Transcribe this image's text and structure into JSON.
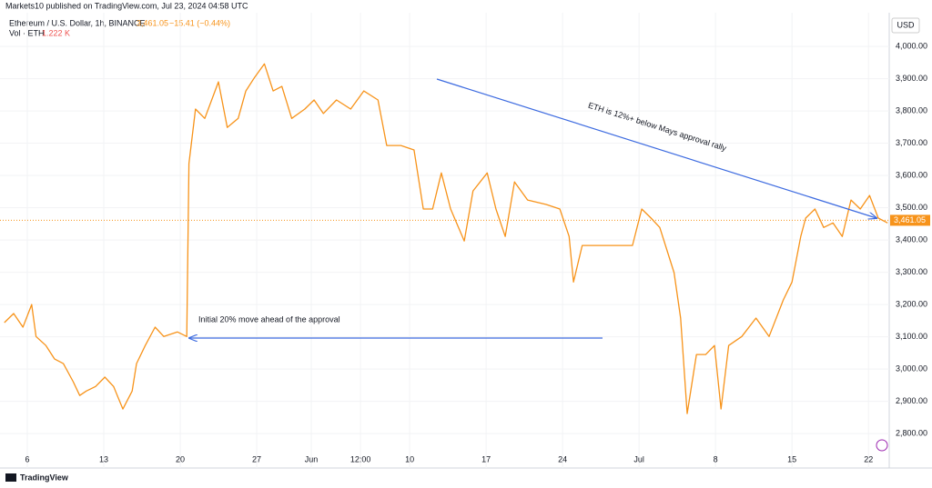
{
  "chart_data": {
    "type": "line",
    "publisher": "Markets10 published on TradingView.com, Jul 23, 2024 04:58 UTC",
    "symbol": "Ethereum / U.S. Dollar, 1h, BINANCE",
    "last_price": {
      "value": 3461.05,
      "label": "3,461.05"
    },
    "last_change": "−15.41 (−0.44%)",
    "volume_label": "Vol · ETH",
    "volume_value": "1.222 K",
    "currency": "USD",
    "brand": "TradingView",
    "annotations": [
      "ETH is 12%+ below Mays approval rally",
      "Initial 20% move ahead of the approval"
    ],
    "x": [
      3.9,
      4.75,
      5.6,
      6.4,
      6.8,
      7.7,
      8.5,
      9.3,
      10.2,
      10.8,
      11.4,
      12.25,
      13.1,
      13.9,
      14.75,
      15.6,
      16.0,
      16.8,
      17.7,
      18.5,
      19.75,
      20.6,
      20.8,
      21.4,
      22.25,
      23.5,
      24.3,
      25.3,
      26.0,
      26.8,
      27.7,
      28.5,
      29.3,
      30.2,
      31.4,
      32.25,
      33.1,
      34.3,
      35.6,
      36.8,
      38.1,
      38.9,
      40.2,
      41.4,
      42.25,
      43.1,
      43.9,
      44.75,
      46.0,
      46.8,
      48.1,
      48.9,
      49.75,
      50.6,
      51.8,
      53.5,
      54.75,
      55.6,
      56.0,
      56.8,
      58.5,
      60.2,
      61.4,
      62.25,
      63.1,
      63.9,
      65.2,
      65.8,
      66.4,
      67.25,
      68.1,
      68.9,
      69.5,
      70.2,
      71.4,
      72.7,
      73.9,
      75.2,
      76.0,
      76.8,
      77.25,
      78.1,
      78.9,
      79.75,
      80.6,
      81.4,
      82.25,
      83.1,
      83.9,
      84.75
    ],
    "series": [
      {
        "name": "ETH",
        "color": "#f7931a",
        "values": [
          3144,
          3172,
          3130,
          3200,
          3101,
          3073,
          3031,
          3017,
          2961,
          2918,
          2932,
          2946,
          2975,
          2946,
          2876,
          2932,
          3017,
          3073,
          3130,
          3101,
          3115,
          3101,
          3637,
          3806,
          3777,
          3890,
          3749,
          3777,
          3862,
          3904,
          3946,
          3862,
          3876,
          3777,
          3806,
          3834,
          3792,
          3834,
          3806,
          3862,
          3834,
          3693,
          3693,
          3679,
          3496,
          3496,
          3608,
          3496,
          3397,
          3552,
          3608,
          3496,
          3411,
          3580,
          3524,
          3510,
          3496,
          3411,
          3270,
          3383,
          3383,
          3383,
          3383,
          3496,
          3468,
          3439,
          3299,
          3158,
          2862,
          3045,
          3045,
          3073,
          2876,
          3073,
          3101,
          3158,
          3101,
          3214,
          3270,
          3411,
          3468,
          3496,
          3439,
          3453,
          3411,
          3524,
          3496,
          3538,
          3468,
          3453
        ]
      }
    ],
    "xlim": [
      3.5,
      84.9
    ],
    "xticks": [
      {
        "value": 6,
        "label": "6"
      },
      {
        "value": 13,
        "label": "13"
      },
      {
        "value": 20,
        "label": "20"
      },
      {
        "value": 27,
        "label": "27"
      },
      {
        "value": 32,
        "label": "Jun"
      },
      {
        "value": 36.5,
        "label": "12:00"
      },
      {
        "value": 41,
        "label": "10"
      },
      {
        "value": 48,
        "label": "17"
      },
      {
        "value": 55,
        "label": "24"
      },
      {
        "value": 62,
        "label": "Jul"
      },
      {
        "value": 69,
        "label": "8"
      },
      {
        "value": 76,
        "label": "15"
      },
      {
        "value": 83,
        "label": "22"
      }
    ],
    "ylim": [
      2744,
      4096
    ],
    "yticks": [
      {
        "value": 2800,
        "label": "2,800.00"
      },
      {
        "value": 2900,
        "label": "2,900.00"
      },
      {
        "value": 3000,
        "label": "3,000.00"
      },
      {
        "value": 3100,
        "label": "3,100.00"
      },
      {
        "value": 3200,
        "label": "3,200.00"
      },
      {
        "value": 3300,
        "label": "3,300.00"
      },
      {
        "value": 3400,
        "label": "3,400.00"
      },
      {
        "value": 3500,
        "label": "3,500.00"
      },
      {
        "value": 3600,
        "label": "3,600.00"
      },
      {
        "value": 3700,
        "label": "3,700.00"
      },
      {
        "value": 3800,
        "label": "3,800.00"
      },
      {
        "value": 3900,
        "label": "3,900.00"
      },
      {
        "value": 4000,
        "label": "4,000.00"
      }
    ],
    "grid": true
  }
}
